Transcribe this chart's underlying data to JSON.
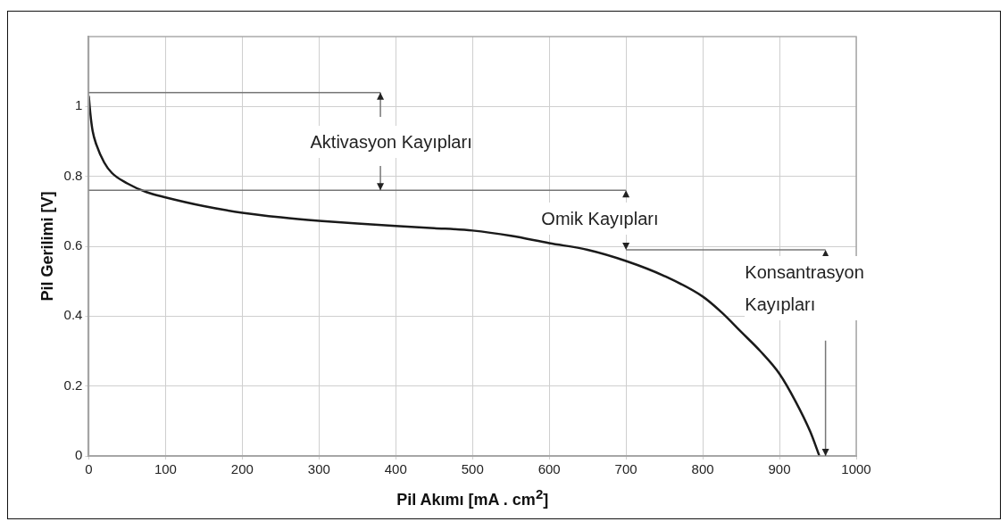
{
  "chart_data": {
    "type": "line",
    "xlabel": "Pil Akımı [mA . cm$^{2}$]",
    "ylabel": "Pil Gerilimi [V]",
    "x": [
      0,
      2,
      5,
      10,
      20,
      30,
      50,
      75,
      100,
      150,
      200,
      250,
      300,
      350,
      400,
      450,
      500,
      550,
      600,
      650,
      700,
      750,
      800,
      825,
      850,
      875,
      900,
      920,
      940,
      952
    ],
    "series": [
      {
        "color": "#1a1a1a",
        "values": [
          1.03,
          0.98,
          0.93,
          0.89,
          0.84,
          0.81,
          0.78,
          0.755,
          0.74,
          0.715,
          0.696,
          0.683,
          0.673,
          0.665,
          0.658,
          0.652,
          0.645,
          0.63,
          0.609,
          0.59,
          0.558,
          0.515,
          0.456,
          0.41,
          0.355,
          0.3,
          0.235,
          0.16,
          0.07,
          0
        ]
      }
    ],
    "xlim": [
      0,
      1000
    ],
    "ylim": [
      0,
      1.2
    ],
    "xticks": [
      0,
      100,
      200,
      300,
      400,
      500,
      600,
      700,
      800,
      900,
      1000
    ],
    "yticks": [
      0,
      0.2,
      0.4,
      0.6,
      0.8,
      1
    ],
    "grid": true,
    "line_style": "solid",
    "marker": "none",
    "annotations": [
      "Aktivasyon Kayıpları",
      "Omik Kayıpları",
      "Konsantrasyon\nKayıpları"
    ]
  }
}
